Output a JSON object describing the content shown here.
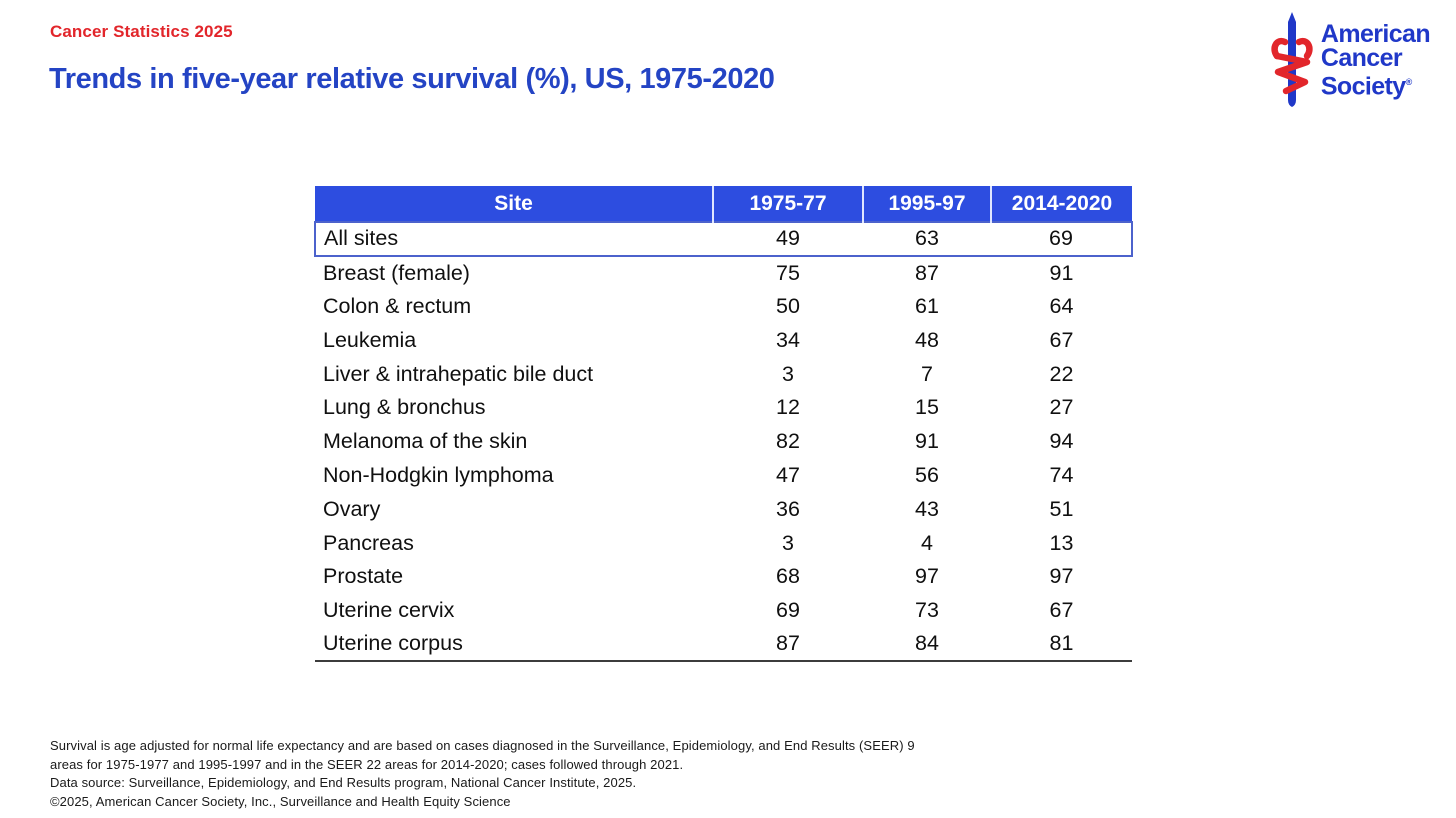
{
  "eyebrow": "Cancer Statistics 2025",
  "title": "Trends in five-year relative survival (%), US, 1975-2020",
  "logo": {
    "line1": "American",
    "line2": "Cancer",
    "line3": "Society",
    "registered": "®"
  },
  "table": {
    "columns": [
      "Site",
      "1975-77",
      "1995-97",
      "2014-2020"
    ],
    "rows": [
      {
        "site": "All sites",
        "values": [
          "49",
          "63",
          "69"
        ],
        "highlight": true
      },
      {
        "site": "Breast (female)",
        "values": [
          "75",
          "87",
          "91"
        ]
      },
      {
        "site": "Colon & rectum",
        "values": [
          "50",
          "61",
          "64"
        ]
      },
      {
        "site": "Leukemia",
        "values": [
          "34",
          "48",
          "67"
        ]
      },
      {
        "site": "Liver & intrahepatic bile duct",
        "values": [
          "3",
          "7",
          "22"
        ]
      },
      {
        "site": "Lung & bronchus",
        "values": [
          "12",
          "15",
          "27"
        ]
      },
      {
        "site": "Melanoma of the skin",
        "values": [
          "82",
          "91",
          "94"
        ]
      },
      {
        "site": "Non-Hodgkin lymphoma",
        "values": [
          "47",
          "56",
          "74"
        ]
      },
      {
        "site": "Ovary",
        "values": [
          "36",
          "43",
          "51"
        ]
      },
      {
        "site": "Pancreas",
        "values": [
          "3",
          "4",
          "13"
        ]
      },
      {
        "site": "Prostate",
        "values": [
          "68",
          "97",
          "97"
        ]
      },
      {
        "site": "Uterine cervix",
        "values": [
          "69",
          "73",
          "67"
        ]
      },
      {
        "site": "Uterine corpus",
        "values": [
          "87",
          "84",
          "81"
        ]
      }
    ]
  },
  "chart_data": {
    "type": "table",
    "title": "Trends in five-year relative survival (%), US, 1975-2020",
    "categories": [
      "All sites",
      "Breast (female)",
      "Colon & rectum",
      "Leukemia",
      "Liver & intrahepatic bile duct",
      "Lung & bronchus",
      "Melanoma of the skin",
      "Non-Hodgkin lymphoma",
      "Ovary",
      "Pancreas",
      "Prostate",
      "Uterine cervix",
      "Uterine corpus"
    ],
    "series": [
      {
        "name": "1975-77",
        "values": [
          49,
          75,
          50,
          34,
          3,
          12,
          82,
          47,
          36,
          3,
          68,
          69,
          87
        ]
      },
      {
        "name": "1995-97",
        "values": [
          63,
          87,
          61,
          48,
          7,
          15,
          91,
          56,
          43,
          4,
          97,
          73,
          84
        ]
      },
      {
        "name": "2014-2020",
        "values": [
          69,
          91,
          64,
          67,
          22,
          27,
          94,
          74,
          51,
          13,
          97,
          67,
          81
        ]
      }
    ],
    "unit": "percent"
  },
  "footnotes": [
    "Survival is age adjusted for normal life expectancy and are based on cases diagnosed in the Surveillance, Epidemiology, and End Results (SEER) 9",
    "areas for 1975-1977 and 1995-1997 and in the SEER 22 areas for 2014-2020; cases followed through 2021.",
    "Data source: Surveillance, Epidemiology, and End Results program, National Cancer Institute, 2025.",
    "©2025, American Cancer Society, Inc., Surveillance and Health Equity Science"
  ],
  "colors": {
    "eyebrow_red": "#E2262B",
    "title_blue": "#2444C4",
    "table_header_blue": "#2D4DE0",
    "highlight_border_blue": "#4C62CC",
    "logo_blue": "#2038C8",
    "logo_red": "#E2262B"
  }
}
